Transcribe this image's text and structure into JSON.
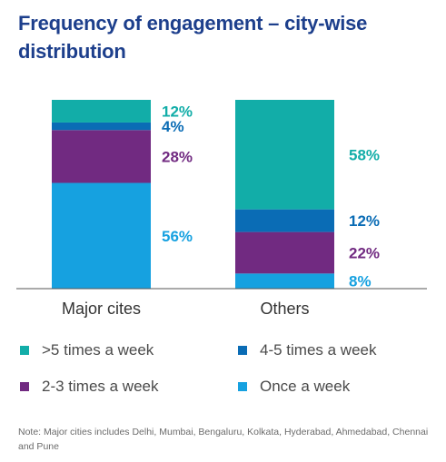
{
  "title": "Frequency of engagement – city-wise distribution",
  "note": "Note: Major cities includes Delhi, Mumbai, Bengaluru, Kolkata, Hyderabad, Ahmedabad, Chennai and Pune",
  "colors": {
    ">5 times a week": "#12ada8",
    "4-5 times a week": "#0a6cb5",
    "2-3 times a week": "#712a81",
    "Once a week": "#16a1e0"
  },
  "chart_data": {
    "type": "bar",
    "stacked": true,
    "categories": [
      "Major cites",
      "Others"
    ],
    "series": [
      {
        "name": "Once a week",
        "values": [
          56,
          8
        ],
        "labels": [
          "56%",
          "8%"
        ]
      },
      {
        "name": "2-3 times a week",
        "values": [
          28,
          22
        ],
        "labels": [
          "28%",
          "22%"
        ]
      },
      {
        "name": "4-5 times a week",
        "values": [
          4,
          12
        ],
        "labels": [
          "4%",
          "12%"
        ]
      },
      {
        "name": ">5 times a week",
        "values": [
          12,
          58
        ],
        "labels": [
          "12%",
          "58%"
        ]
      }
    ],
    "ylim": [
      0,
      100
    ],
    "grid": false,
    "legend_position": "bottom"
  },
  "legend": [
    {
      "label": ">5 times a week"
    },
    {
      "label": "4-5 times a week"
    },
    {
      "label": "2-3 times a week"
    },
    {
      "label": "Once a week"
    }
  ]
}
